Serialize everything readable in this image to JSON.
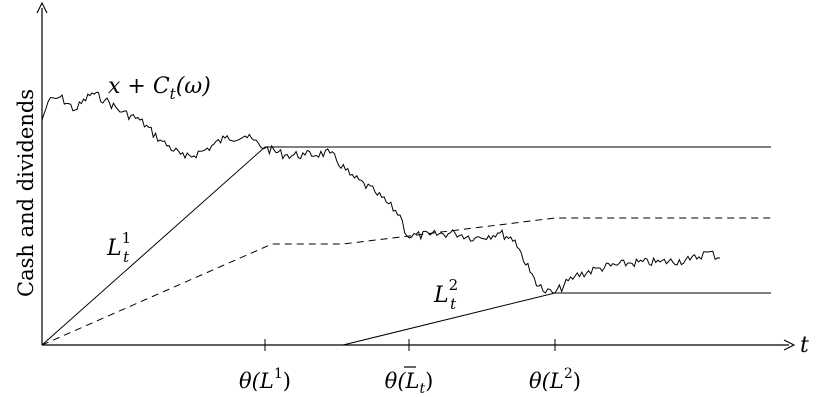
{
  "axes": {
    "ylabel": "Cash and dividends",
    "xlabel": "t"
  },
  "curve_labels": {
    "wealth": {
      "main": "x + C",
      "sub": "t",
      "tail": "(ω)"
    },
    "l1": {
      "main": "L",
      "sup": "1",
      "sub": "t"
    },
    "l2": {
      "main": "L",
      "sup": "2",
      "sub": "t"
    }
  },
  "ticks": [
    {
      "pre": "θ(",
      "main": "L",
      "sup": "1",
      "sub": "",
      "post": ")",
      "bar": false
    },
    {
      "pre": "θ(",
      "main": "L",
      "sup": "",
      "sub": "t",
      "post": ")",
      "bar": true
    },
    {
      "pre": "θ(",
      "main": "L",
      "sup": "2",
      "sub": "",
      "post": ")",
      "bar": false
    }
  ]
}
